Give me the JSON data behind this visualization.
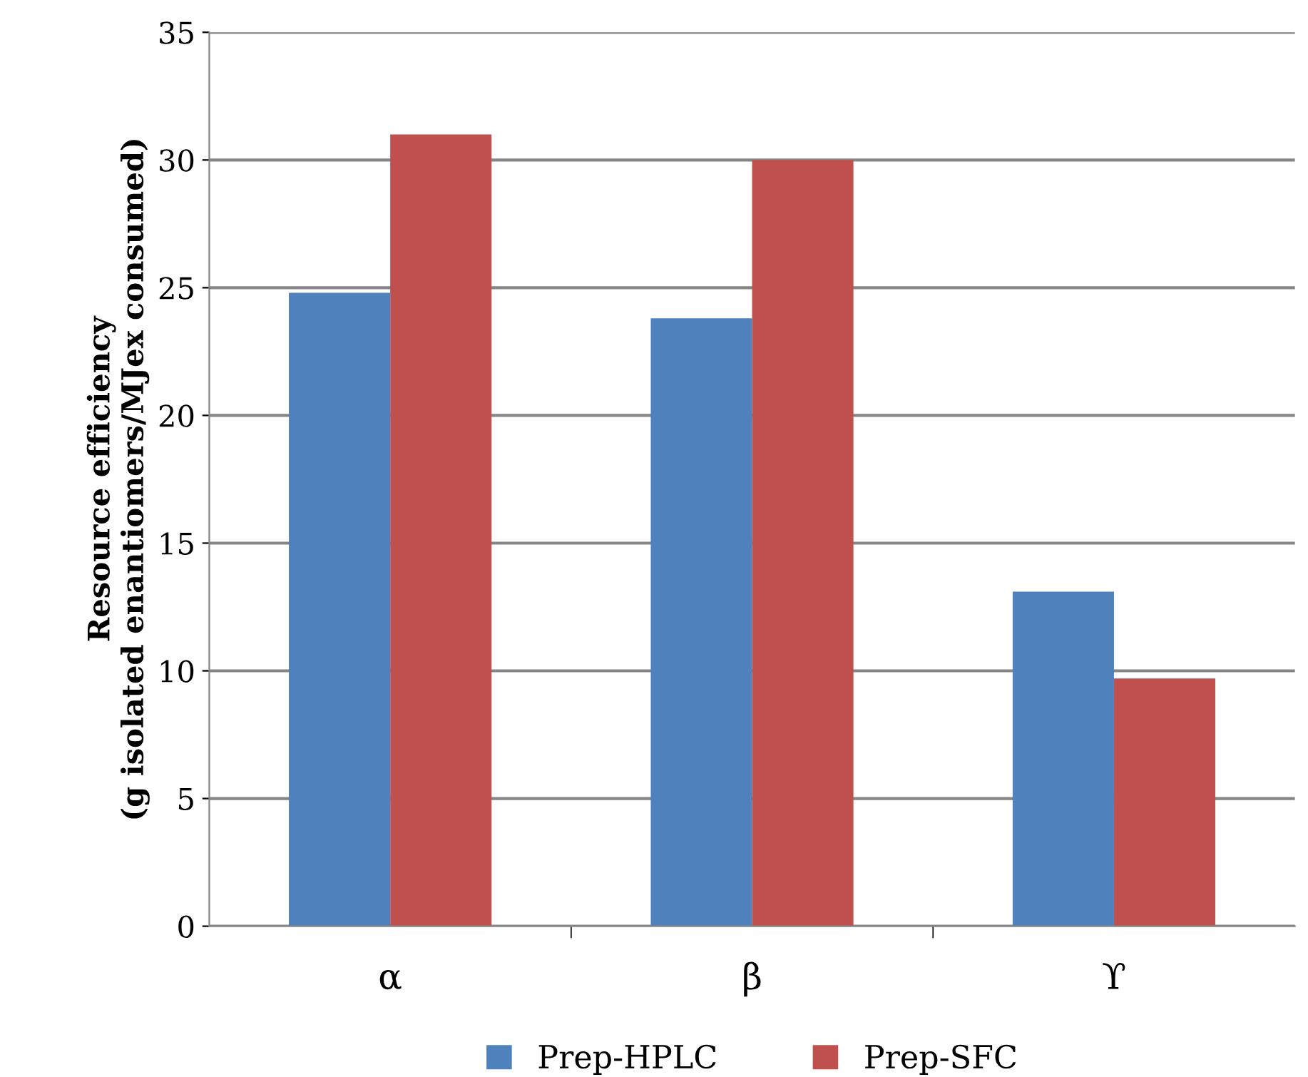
{
  "chart_data": {
    "type": "bar",
    "ylabel": "Resource efficiency\n(g isolated enantiomers/MJex consumed)",
    "categories": [
      "α",
      "β",
      "ϒ"
    ],
    "series": [
      {
        "name": "Prep-HPLC",
        "color": "#4f81bd",
        "values": [
          24.8,
          23.8,
          13.1
        ]
      },
      {
        "name": "Prep-SFC",
        "color": "#c0504d",
        "values": [
          31.0,
          30.0,
          9.7
        ]
      }
    ],
    "ylim": [
      0,
      35
    ],
    "yticks": [
      0,
      5,
      10,
      15,
      20,
      25,
      30,
      35
    ],
    "grid": "y",
    "legend": "bottom"
  }
}
